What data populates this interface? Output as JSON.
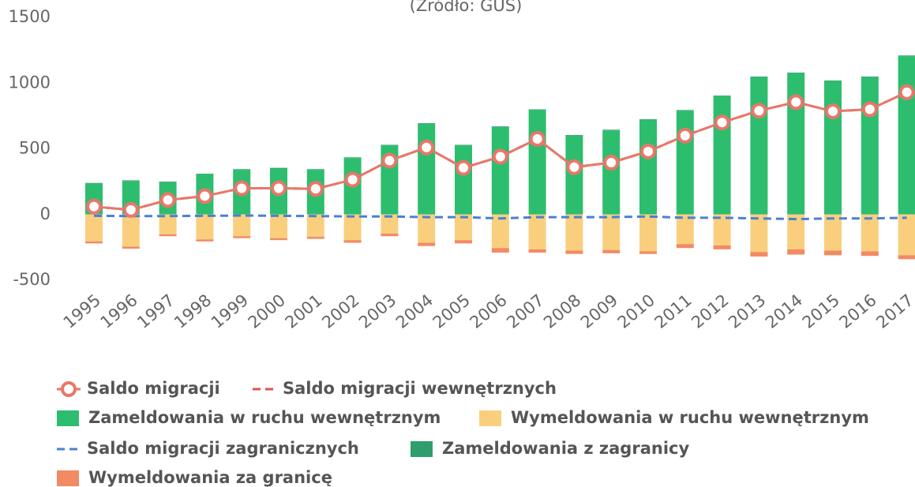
{
  "chart_data": {
    "type": "bar",
    "subtitle": "(Źródło: GUS)",
    "categories": [
      "1995",
      "1996",
      "1997",
      "1998",
      "1999",
      "2000",
      "2001",
      "2002",
      "2003",
      "2004",
      "2005",
      "2006",
      "2007",
      "2008",
      "2009",
      "2010",
      "2011",
      "2012",
      "2013",
      "2014",
      "2015",
      "2016",
      "2017"
    ],
    "ylim": [
      -500,
      1500
    ],
    "yticks": [
      -500,
      0,
      500,
      1000,
      1500
    ],
    "grid": false,
    "legend": "bottom",
    "series": [
      {
        "name": "Saldo migracji",
        "type": "line",
        "style": "marker",
        "color": "#e8776a",
        "values": [
          60,
          35,
          110,
          140,
          200,
          200,
          195,
          265,
          410,
          510,
          355,
          440,
          575,
          360,
          395,
          480,
          600,
          700,
          790,
          855,
          785,
          800,
          930
        ]
      },
      {
        "name": "Saldo migracji wewnętrznych",
        "type": "line",
        "style": "dashed",
        "color": "#d9534f",
        "values": [
          60,
          35,
          110,
          140,
          200,
          200,
          195,
          265,
          410,
          510,
          355,
          440,
          575,
          360,
          395,
          480,
          600,
          700,
          790,
          855,
          785,
          800,
          930
        ]
      },
      {
        "name": "Zameldowania w ruchu wewnętrznym",
        "type": "bar",
        "color": "#2dbd6e",
        "values": [
          235,
          255,
          245,
          305,
          340,
          350,
          340,
          430,
          525,
          690,
          525,
          665,
          795,
          600,
          640,
          720,
          790,
          900,
          1045,
          1075,
          1015,
          1045,
          1205
        ]
      },
      {
        "name": "Wymeldowania w ruchu wewnętrznym",
        "type": "bar",
        "color": "#f9cf7e",
        "values": [
          -205,
          -245,
          -150,
          -190,
          -165,
          -180,
          -170,
          -195,
          -145,
          -215,
          -195,
          -255,
          -265,
          -275,
          -270,
          -280,
          -225,
          -235,
          -285,
          -265,
          -275,
          -280,
          -310
        ]
      },
      {
        "name": "Saldo migracji zagranicznych",
        "type": "line",
        "style": "dashed",
        "color": "#4a80d4",
        "values": [
          -10,
          -12,
          -12,
          -10,
          -8,
          -10,
          -12,
          -15,
          -15,
          -20,
          -20,
          -30,
          -20,
          -20,
          -20,
          -15,
          -25,
          -25,
          -30,
          -35,
          -30,
          -30,
          -25
        ]
      },
      {
        "name": "Zameldowania z zagranicy",
        "type": "bar",
        "color": "#2f9e6c",
        "values": [
          5,
          5,
          5,
          5,
          5,
          5,
          5,
          5,
          5,
          5,
          5,
          5,
          5,
          5,
          5,
          5,
          5,
          5,
          5,
          5,
          5,
          5,
          5
        ]
      },
      {
        "name": "Wymeldowania za granicę",
        "type": "bar",
        "color": "#f28a63",
        "values": [
          -15,
          -15,
          -15,
          -15,
          -15,
          -15,
          -15,
          -20,
          -20,
          -25,
          -25,
          -35,
          -25,
          -25,
          -25,
          -20,
          -30,
          -30,
          -35,
          -40,
          -35,
          -35,
          -30
        ]
      }
    ]
  }
}
